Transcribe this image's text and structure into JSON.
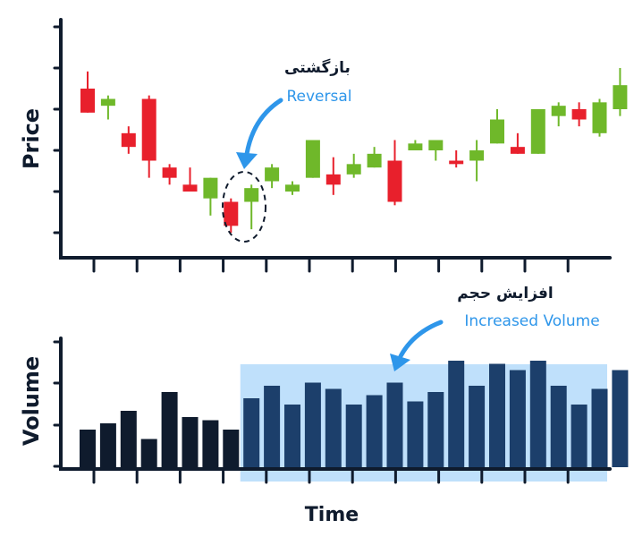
{
  "colors": {
    "axis": "#0f1b2d",
    "up": "#6fb82a",
    "down": "#e8202c",
    "accent": "#2e96ea",
    "highlight_fill": "#bfe0fb",
    "volume_dark": "#0f1b2d",
    "volume_highlight": "#1c3f6b"
  },
  "chart_data": [
    {
      "type": "candlestick",
      "ylabel": "Price",
      "annotation": {
        "fa": "بازگشتی",
        "en": "Reversal",
        "target_index": 7
      },
      "ylim": [
        0,
        6
      ],
      "candles": [
        {
          "open": 4.2,
          "close": 3.5,
          "high": 4.7,
          "low": 3.5
        },
        {
          "open": 3.7,
          "close": 3.9,
          "high": 4.0,
          "low": 3.3
        },
        {
          "open": 2.9,
          "close": 2.5,
          "high": 3.1,
          "low": 2.3
        },
        {
          "open": 3.9,
          "close": 2.1,
          "high": 4.0,
          "low": 1.6
        },
        {
          "open": 1.9,
          "close": 1.6,
          "high": 2.0,
          "low": 1.4
        },
        {
          "open": 1.4,
          "close": 1.2,
          "high": 1.9,
          "low": 1.2
        },
        {
          "open": 1.0,
          "close": 1.6,
          "high": 1.6,
          "low": 0.5
        },
        {
          "open": 0.9,
          "close": 0.2,
          "high": 1.0,
          "low": 0.0
        },
        {
          "open": 0.9,
          "close": 1.3,
          "high": 1.4,
          "low": 0.1
        },
        {
          "open": 1.5,
          "close": 1.9,
          "high": 2.0,
          "low": 1.3
        },
        {
          "open": 1.2,
          "close": 1.4,
          "high": 1.5,
          "low": 1.1
        },
        {
          "open": 1.6,
          "close": 2.7,
          "high": 2.7,
          "low": 1.6
        },
        {
          "open": 1.7,
          "close": 1.4,
          "high": 2.2,
          "low": 1.1
        },
        {
          "open": 1.7,
          "close": 2.0,
          "high": 2.3,
          "low": 1.6
        },
        {
          "open": 1.9,
          "close": 2.3,
          "high": 2.5,
          "low": 1.9
        },
        {
          "open": 2.1,
          "close": 0.9,
          "high": 2.7,
          "low": 0.8
        },
        {
          "open": 2.4,
          "close": 2.6,
          "high": 2.7,
          "low": 2.4
        },
        {
          "open": 2.4,
          "close": 2.7,
          "high": 2.7,
          "low": 2.1
        },
        {
          "open": 2.1,
          "close": 2.0,
          "high": 2.4,
          "low": 1.9
        },
        {
          "open": 2.1,
          "close": 2.4,
          "high": 2.7,
          "low": 1.5
        },
        {
          "open": 2.6,
          "close": 3.3,
          "high": 3.6,
          "low": 2.6
        },
        {
          "open": 2.5,
          "close": 2.3,
          "high": 2.9,
          "low": 2.3
        },
        {
          "open": 2.3,
          "close": 3.6,
          "high": 3.6,
          "low": 2.3
        },
        {
          "open": 3.4,
          "close": 3.7,
          "high": 3.8,
          "low": 3.1
        },
        {
          "open": 3.6,
          "close": 3.3,
          "high": 3.8,
          "low": 3.1
        },
        {
          "open": 2.9,
          "close": 3.8,
          "high": 3.9,
          "low": 2.8
        },
        {
          "open": 3.6,
          "close": 4.3,
          "high": 4.8,
          "low": 3.4
        }
      ]
    },
    {
      "type": "bar",
      "ylabel": "Volume",
      "xlabel": "Time",
      "annotation": {
        "fa": "افزایش حجم",
        "en": "Increased Volume",
        "highlight_start": 8
      },
      "ylim": [
        0,
        4
      ],
      "values": [
        1.2,
        1.4,
        1.8,
        0.9,
        2.4,
        1.6,
        1.5,
        1.2,
        2.2,
        2.6,
        2.0,
        2.7,
        2.5,
        2.0,
        2.3,
        2.7,
        2.1,
        2.4,
        3.4,
        2.6,
        3.3,
        3.1,
        3.4,
        2.6,
        2.0,
        2.5,
        3.1
      ]
    }
  ]
}
